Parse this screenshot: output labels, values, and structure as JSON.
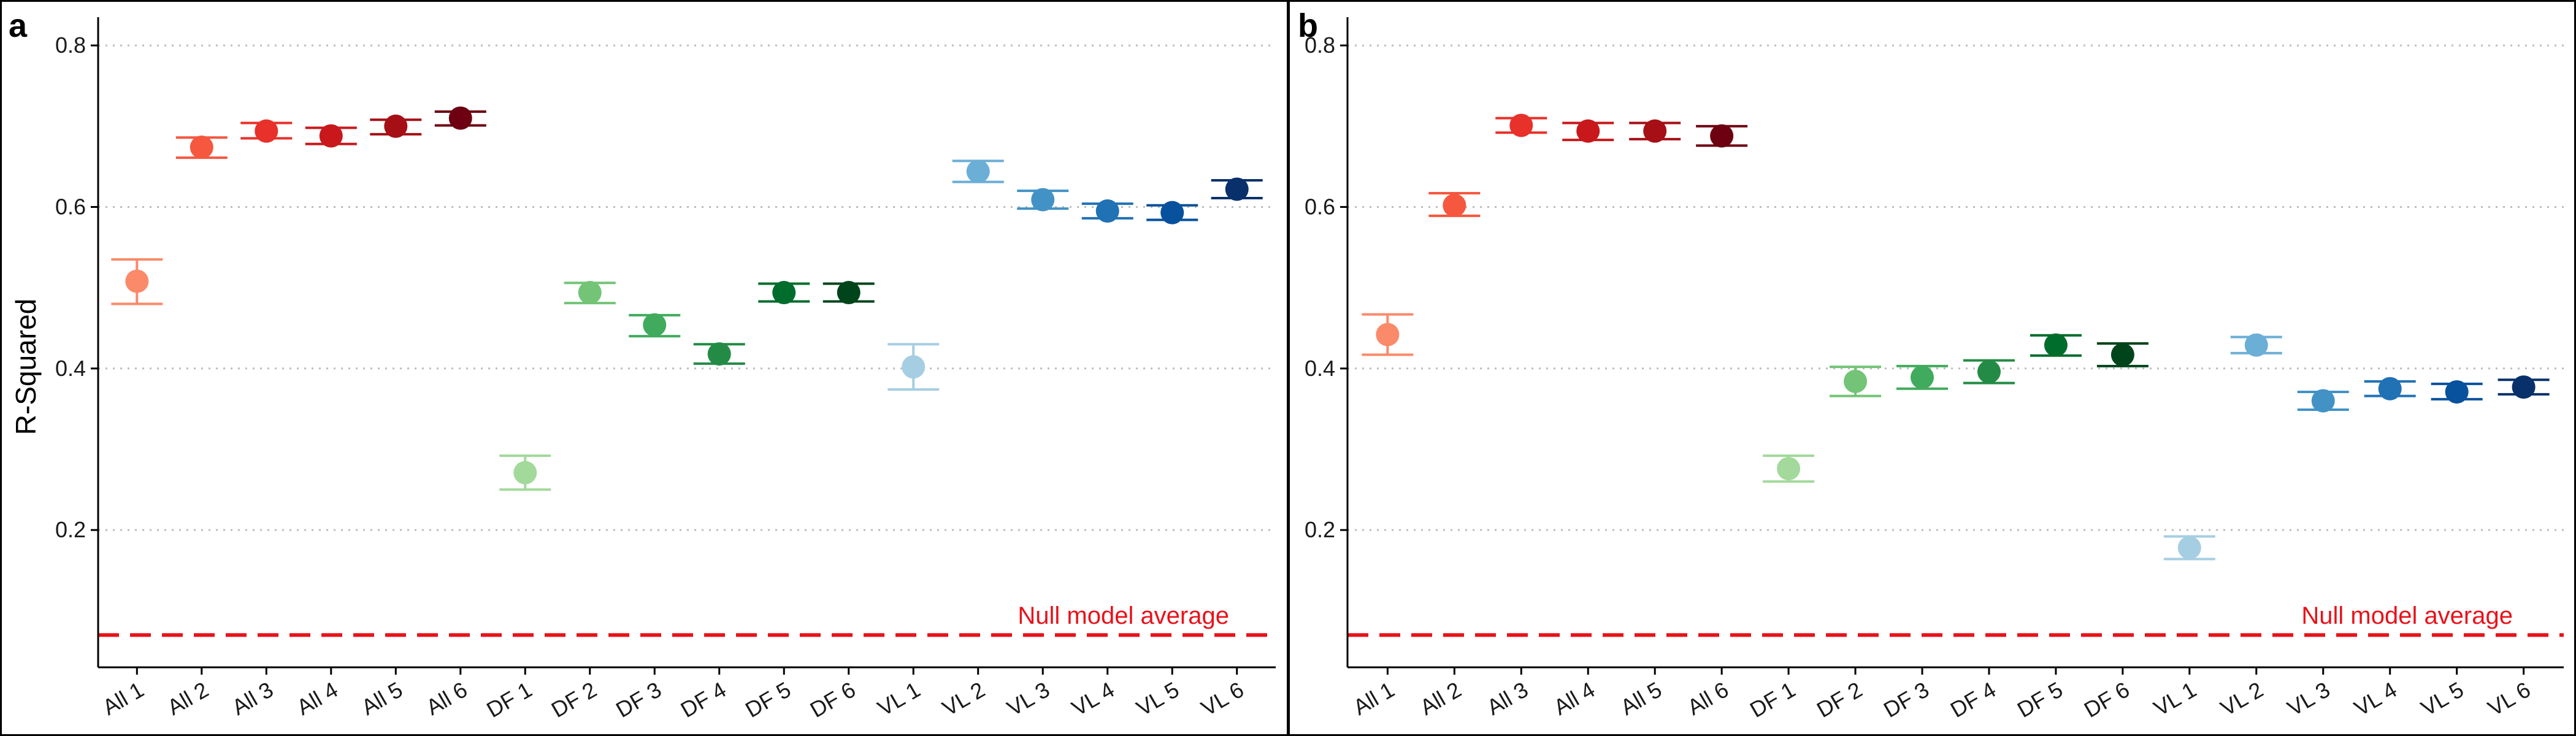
{
  "figure": {
    "null_label": "Null model average",
    "null_color": "#e8121a",
    "ylabel": "R-Squared"
  },
  "chart_data": [
    {
      "type": "scatter",
      "panel": "a",
      "ylabel": "R-Squared",
      "xlabel": "",
      "ylim": [
        0.03,
        0.835
      ],
      "yticks": [
        0.2,
        0.4,
        0.6,
        0.8
      ],
      "grid": "horizontal dotted",
      "null_model_average": 0.07,
      "categories": [
        "All 1",
        "All 2",
        "All 3",
        "All 4",
        "All 5",
        "All 6",
        "DF 1",
        "DF 2",
        "DF 3",
        "DF 4",
        "DF 5",
        "DF 6",
        "VL 1",
        "VL 2",
        "VL 3",
        "VL 4",
        "VL 5",
        "VL 6"
      ],
      "values": [
        0.508,
        0.674,
        0.694,
        0.688,
        0.7,
        0.71,
        0.271,
        0.494,
        0.454,
        0.418,
        0.494,
        0.494,
        0.402,
        0.644,
        0.609,
        0.595,
        0.593,
        0.622
      ],
      "error_lower": [
        0.48,
        0.661,
        0.685,
        0.678,
        0.69,
        0.701,
        0.25,
        0.481,
        0.44,
        0.406,
        0.483,
        0.483,
        0.374,
        0.631,
        0.598,
        0.586,
        0.584,
        0.611
      ],
      "error_upper": [
        0.535,
        0.686,
        0.704,
        0.698,
        0.708,
        0.718,
        0.292,
        0.506,
        0.466,
        0.43,
        0.505,
        0.505,
        0.43,
        0.657,
        0.62,
        0.604,
        0.602,
        0.633
      ],
      "colors": [
        "#fb8a6a",
        "#f6573f",
        "#e7312a",
        "#c8181c",
        "#a50f15",
        "#6d0011",
        "#a3d99b",
        "#73c477",
        "#41ab5d",
        "#238b45",
        "#006d2c",
        "#00441b",
        "#a6cee3",
        "#6baed6",
        "#4292c6",
        "#2171b5",
        "#08519c",
        "#08306b"
      ]
    },
    {
      "type": "scatter",
      "panel": "b",
      "ylabel": "",
      "xlabel": "",
      "ylim": [
        0.03,
        0.835
      ],
      "yticks": [
        0.2,
        0.4,
        0.6,
        0.8
      ],
      "grid": "horizontal dotted",
      "null_model_average": 0.07,
      "categories": [
        "All 1",
        "All 2",
        "All 3",
        "All 4",
        "All 5",
        "All 6",
        "DF 1",
        "DF 2",
        "DF 3",
        "DF 4",
        "DF 5",
        "DF 6",
        "VL 1",
        "VL 2",
        "VL 3",
        "VL 4",
        "VL 5",
        "VL 6"
      ],
      "values": [
        0.442,
        0.602,
        0.701,
        0.694,
        0.694,
        0.688,
        0.276,
        0.384,
        0.389,
        0.396,
        0.429,
        0.417,
        0.178,
        0.429,
        0.36,
        0.375,
        0.371,
        0.377
      ],
      "error_lower": [
        0.417,
        0.589,
        0.692,
        0.683,
        0.684,
        0.676,
        0.26,
        0.366,
        0.375,
        0.382,
        0.416,
        0.403,
        0.164,
        0.419,
        0.349,
        0.366,
        0.362,
        0.368
      ],
      "error_upper": [
        0.467,
        0.617,
        0.71,
        0.704,
        0.704,
        0.7,
        0.292,
        0.402,
        0.403,
        0.41,
        0.441,
        0.431,
        0.192,
        0.439,
        0.371,
        0.384,
        0.381,
        0.386
      ],
      "colors": [
        "#fb8a6a",
        "#f6573f",
        "#e7312a",
        "#c8181c",
        "#a50f15",
        "#6d0011",
        "#a3d99b",
        "#73c477",
        "#41ab5d",
        "#238b45",
        "#006d2c",
        "#00441b",
        "#a6cee3",
        "#6baed6",
        "#4292c6",
        "#2171b5",
        "#08519c",
        "#08306b"
      ]
    }
  ]
}
